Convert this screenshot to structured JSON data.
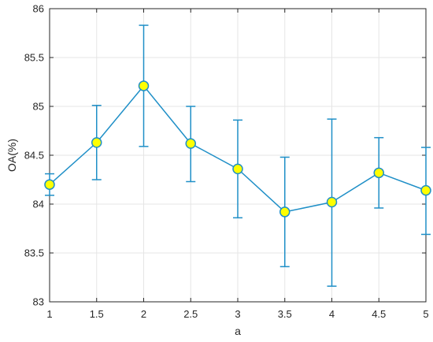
{
  "chart_data": {
    "type": "line",
    "title": "",
    "xlabel": "a",
    "ylabel": "OA(%)",
    "xlim": [
      1,
      5
    ],
    "ylim": [
      83,
      86
    ],
    "xticks": [
      "1",
      "1.5",
      "2",
      "2.5",
      "3",
      "3.5",
      "4",
      "4.5",
      "5"
    ],
    "yticks": [
      "83",
      "83.5",
      "84",
      "84.5",
      "85",
      "85.5",
      "86"
    ],
    "grid": true,
    "legend": "none",
    "colors": {
      "line": "#1f8fc7",
      "marker_fill": "#ffff00",
      "marker_edge": "#1f8fc7",
      "grid": "#e5e5e5",
      "axis": "#262626"
    },
    "series": [
      {
        "x": [
          1,
          1.5,
          2,
          2.5,
          3,
          3.5,
          4,
          4.5,
          5
        ],
        "y": [
          84.2,
          84.63,
          85.21,
          84.62,
          84.36,
          83.92,
          84.02,
          84.32,
          84.14
        ],
        "err_low": [
          84.09,
          84.25,
          84.59,
          84.23,
          83.86,
          83.36,
          83.16,
          83.96,
          83.69
        ],
        "err_high": [
          84.31,
          85.01,
          85.83,
          85.0,
          84.86,
          84.48,
          84.87,
          84.68,
          84.58
        ]
      }
    ]
  }
}
